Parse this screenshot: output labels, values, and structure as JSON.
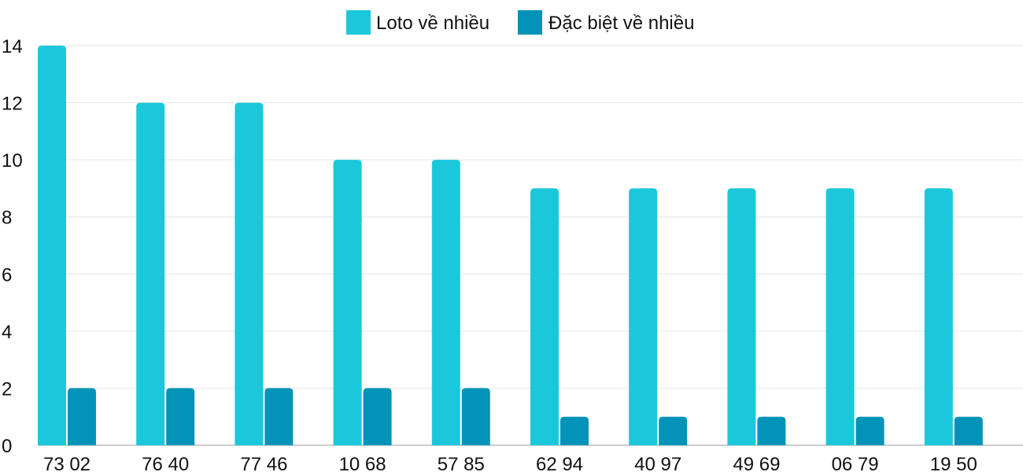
{
  "chart_data": {
    "type": "bar",
    "title": "",
    "xlabel": "",
    "ylabel": "",
    "categories": [
      "73 02",
      "76 40",
      "77 46",
      "10 68",
      "57 85",
      "62 94",
      "40 97",
      "49 69",
      "06 79",
      "19 50"
    ],
    "series": [
      {
        "name": "Loto về nhiều",
        "color": "#1bc8db",
        "values": [
          14,
          12,
          12,
          10,
          10,
          9,
          9,
          9,
          9,
          9
        ]
      },
      {
        "name": "Đặc biệt về nhiều",
        "color": "#0493b8",
        "values": [
          2,
          2,
          2,
          2,
          2,
          1,
          1,
          1,
          1,
          1
        ]
      }
    ],
    "ylim": [
      0,
      14
    ],
    "yticks": [
      0,
      2,
      4,
      6,
      8,
      10,
      12,
      14
    ],
    "grid": true,
    "legend_position": "top-center"
  }
}
